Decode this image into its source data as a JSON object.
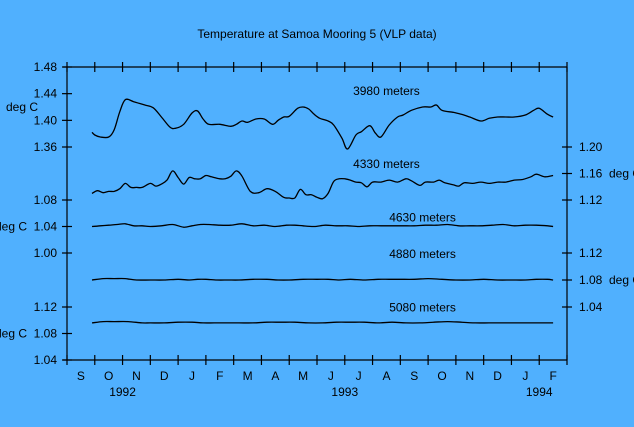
{
  "chart_data": {
    "type": "line",
    "title": "Temperature at Samoa Mooring 5 (VLP data)",
    "xlabel": "",
    "x_unit": "month index (0 = Sep 1992)",
    "x_ticks": [
      "S",
      "O",
      "N",
      "D",
      "J",
      "F",
      "M",
      "A",
      "M",
      "J",
      "J",
      "A",
      "S",
      "O",
      "N",
      "D",
      "J",
      "F"
    ],
    "year_labels": [
      {
        "label": "1992",
        "month": 2
      },
      {
        "label": "1993",
        "month": 10
      },
      {
        "label": "1994",
        "month": 17
      }
    ],
    "xlim": [
      0,
      18
    ],
    "grid": false,
    "axes": [
      {
        "id": "L1",
        "side": "left",
        "unit_label": "deg C",
        "unit_at": 1.42,
        "ylim": [
          1.36,
          1.48
        ],
        "ticks": [
          "1.48",
          "1.44",
          "1.40",
          "1.36"
        ],
        "tick_values": [
          1.48,
          1.44,
          1.4,
          1.36
        ]
      },
      {
        "id": "L2",
        "side": "left",
        "unit_label": "deg C",
        "unit_at": 1.04,
        "ylim": [
          1.0,
          1.08
        ],
        "ticks": [
          "1.08",
          "1.04",
          "1.00"
        ],
        "tick_values": [
          1.08,
          1.04,
          1.0
        ]
      },
      {
        "id": "L3",
        "side": "left",
        "unit_label": "deg C",
        "unit_at": 1.08,
        "ylim": [
          1.04,
          1.12
        ],
        "ticks": [
          "1.12",
          "1.08",
          "1.04"
        ],
        "tick_values": [
          1.12,
          1.08,
          1.04
        ]
      },
      {
        "id": "R1",
        "side": "right",
        "unit_label": "deg C",
        "unit_at": 1.16,
        "ylim": [
          1.12,
          1.2
        ],
        "ticks": [
          "1.20",
          "1.16",
          "1.12"
        ],
        "tick_values": [
          1.2,
          1.16,
          1.12
        ]
      },
      {
        "id": "R2",
        "side": "right",
        "unit_label": "deg C",
        "unit_at": 1.08,
        "ylim": [
          1.04,
          1.12
        ],
        "ticks": [
          "1.12",
          "1.08",
          "1.04"
        ],
        "tick_values": [
          1.12,
          1.08,
          1.04
        ]
      }
    ],
    "series": [
      {
        "name": "3980 meters",
        "axis": "L1",
        "label_at": [
          11.5,
          1.438
        ],
        "x": [
          0.9,
          1.0,
          1.2,
          1.5,
          1.7,
          1.9,
          2.1,
          2.4,
          2.8,
          3.1,
          3.4,
          3.7,
          3.9,
          4.2,
          4.5,
          4.7,
          4.9,
          5.1,
          5.5,
          5.9,
          6.1,
          6.3,
          6.5,
          6.8,
          7.1,
          7.4,
          7.6,
          7.8,
          8.0,
          8.3,
          8.5,
          8.7,
          8.9,
          9.1,
          9.4,
          9.6,
          9.9,
          10.1,
          10.4,
          10.6,
          10.9,
          11.1,
          11.3,
          11.6,
          11.9,
          12.1,
          12.4,
          12.8,
          13.1,
          13.3,
          13.5,
          13.9,
          14.2,
          14.5,
          14.9,
          15.2,
          15.5,
          15.8,
          16.1,
          16.5,
          16.8,
          17.0,
          17.3,
          17.5
        ],
        "values": [
          1.382,
          1.378,
          1.375,
          1.375,
          1.386,
          1.413,
          1.431,
          1.428,
          1.423,
          1.419,
          1.405,
          1.39,
          1.388,
          1.394,
          1.411,
          1.414,
          1.402,
          1.394,
          1.394,
          1.391,
          1.394,
          1.399,
          1.397,
          1.402,
          1.402,
          1.394,
          1.4,
          1.405,
          1.406,
          1.418,
          1.42,
          1.417,
          1.409,
          1.403,
          1.399,
          1.393,
          1.373,
          1.357,
          1.378,
          1.383,
          1.392,
          1.381,
          1.375,
          1.393,
          1.405,
          1.408,
          1.415,
          1.42,
          1.42,
          1.423,
          1.415,
          1.412,
          1.409,
          1.405,
          1.399,
          1.403,
          1.405,
          1.405,
          1.405,
          1.408,
          1.415,
          1.418,
          1.409,
          1.405
        ]
      },
      {
        "name": "4330 meters",
        "axis": "R1",
        "label_at": [
          11.5,
          1.168
        ],
        "x": [
          0.9,
          1.1,
          1.3,
          1.5,
          1.7,
          1.9,
          2.1,
          2.3,
          2.5,
          2.7,
          3.0,
          3.2,
          3.4,
          3.6,
          3.8,
          4.0,
          4.2,
          4.4,
          4.6,
          4.8,
          5.0,
          5.2,
          5.5,
          5.7,
          5.9,
          6.1,
          6.3,
          6.6,
          6.9,
          7.2,
          7.5,
          7.8,
          8.0,
          8.2,
          8.4,
          8.6,
          8.8,
          9.0,
          9.2,
          9.4,
          9.6,
          9.8,
          10.0,
          10.2,
          10.4,
          10.6,
          10.8,
          11.0,
          11.3,
          11.6,
          11.9,
          12.2,
          12.4,
          12.7,
          12.9,
          13.2,
          13.4,
          13.6,
          13.9,
          14.1,
          14.3,
          14.6,
          14.9,
          15.2,
          15.5,
          15.8,
          16.1,
          16.4,
          16.7,
          16.9,
          17.2,
          17.5
        ],
        "values": [
          1.13,
          1.134,
          1.131,
          1.133,
          1.133,
          1.137,
          1.145,
          1.139,
          1.139,
          1.139,
          1.145,
          1.141,
          1.144,
          1.15,
          1.164,
          1.154,
          1.144,
          1.154,
          1.152,
          1.152,
          1.157,
          1.155,
          1.152,
          1.152,
          1.156,
          1.164,
          1.156,
          1.133,
          1.131,
          1.137,
          1.133,
          1.124,
          1.123,
          1.123,
          1.136,
          1.128,
          1.128,
          1.124,
          1.122,
          1.13,
          1.148,
          1.152,
          1.152,
          1.15,
          1.147,
          1.146,
          1.14,
          1.147,
          1.147,
          1.15,
          1.147,
          1.152,
          1.149,
          1.142,
          1.147,
          1.147,
          1.15,
          1.146,
          1.143,
          1.141,
          1.146,
          1.145,
          1.147,
          1.145,
          1.147,
          1.147,
          1.15,
          1.151,
          1.155,
          1.159,
          1.155,
          1.157
        ]
      },
      {
        "name": "4630 meters",
        "axis": "L2",
        "label_at": [
          12.8,
          1.0475
        ],
        "x": [
          0.9,
          1.2,
          1.5,
          1.8,
          2.1,
          2.4,
          2.7,
          3.0,
          3.4,
          3.8,
          4.2,
          4.5,
          4.8,
          5.1,
          5.5,
          5.9,
          6.3,
          6.7,
          7.1,
          7.5,
          7.9,
          8.2,
          8.5,
          8.9,
          9.3,
          9.7,
          10.1,
          10.5,
          10.9,
          11.3,
          11.7,
          12.1,
          12.5,
          12.9,
          13.3,
          13.7,
          14.1,
          14.5,
          14.9,
          15.3,
          15.7,
          16.1,
          16.5,
          16.9,
          17.3,
          17.5
        ],
        "values": [
          1.04,
          1.041,
          1.042,
          1.043,
          1.044,
          1.041,
          1.041,
          1.04,
          1.041,
          1.043,
          1.039,
          1.041,
          1.043,
          1.043,
          1.042,
          1.042,
          1.044,
          1.041,
          1.042,
          1.04,
          1.042,
          1.042,
          1.041,
          1.04,
          1.042,
          1.041,
          1.041,
          1.04,
          1.041,
          1.041,
          1.041,
          1.041,
          1.041,
          1.042,
          1.042,
          1.043,
          1.041,
          1.041,
          1.041,
          1.042,
          1.043,
          1.041,
          1.042,
          1.042,
          1.041,
          1.04
        ]
      },
      {
        "name": "4880 meters",
        "axis": "R2",
        "label_at": [
          12.8,
          1.1125
        ],
        "x": [
          0.9,
          1.3,
          1.7,
          2.1,
          2.5,
          3.0,
          3.5,
          4.0,
          4.4,
          4.7,
          5.0,
          5.4,
          5.8,
          6.2,
          6.7,
          7.2,
          7.6,
          8.0,
          8.5,
          9.0,
          9.4,
          9.8,
          10.2,
          10.7,
          11.2,
          11.6,
          12.0,
          12.5,
          13.0,
          13.5,
          14.0,
          14.5,
          15.0,
          15.5,
          16.0,
          16.5,
          16.9,
          17.3,
          17.5
        ],
        "values": [
          1.08,
          1.082,
          1.082,
          1.082,
          1.08,
          1.08,
          1.08,
          1.081,
          1.08,
          1.081,
          1.081,
          1.08,
          1.08,
          1.08,
          1.081,
          1.081,
          1.08,
          1.08,
          1.081,
          1.081,
          1.081,
          1.08,
          1.081,
          1.08,
          1.081,
          1.081,
          1.081,
          1.081,
          1.082,
          1.081,
          1.08,
          1.08,
          1.081,
          1.08,
          1.08,
          1.08,
          1.081,
          1.081,
          1.08
        ]
      },
      {
        "name": "5080 meters",
        "axis": "L3",
        "label_at": [
          12.8,
          1.1135
        ],
        "x": [
          0.9,
          1.3,
          1.7,
          2.2,
          2.7,
          3.0,
          3.5,
          4.0,
          4.5,
          4.9,
          5.3,
          5.7,
          6.2,
          6.7,
          7.2,
          7.7,
          8.2,
          8.7,
          9.2,
          9.7,
          10.2,
          10.7,
          11.2,
          11.7,
          12.2,
          12.7,
          13.2,
          13.7,
          14.2,
          14.7,
          15.2,
          15.7,
          16.2,
          16.7,
          17.2,
          17.5
        ],
        "values": [
          1.096,
          1.098,
          1.098,
          1.098,
          1.096,
          1.096,
          1.096,
          1.097,
          1.097,
          1.096,
          1.096,
          1.096,
          1.096,
          1.096,
          1.097,
          1.097,
          1.097,
          1.096,
          1.096,
          1.097,
          1.097,
          1.097,
          1.096,
          1.097,
          1.096,
          1.096,
          1.097,
          1.098,
          1.097,
          1.096,
          1.096,
          1.096,
          1.096,
          1.096,
          1.096,
          1.096
        ]
      }
    ]
  }
}
